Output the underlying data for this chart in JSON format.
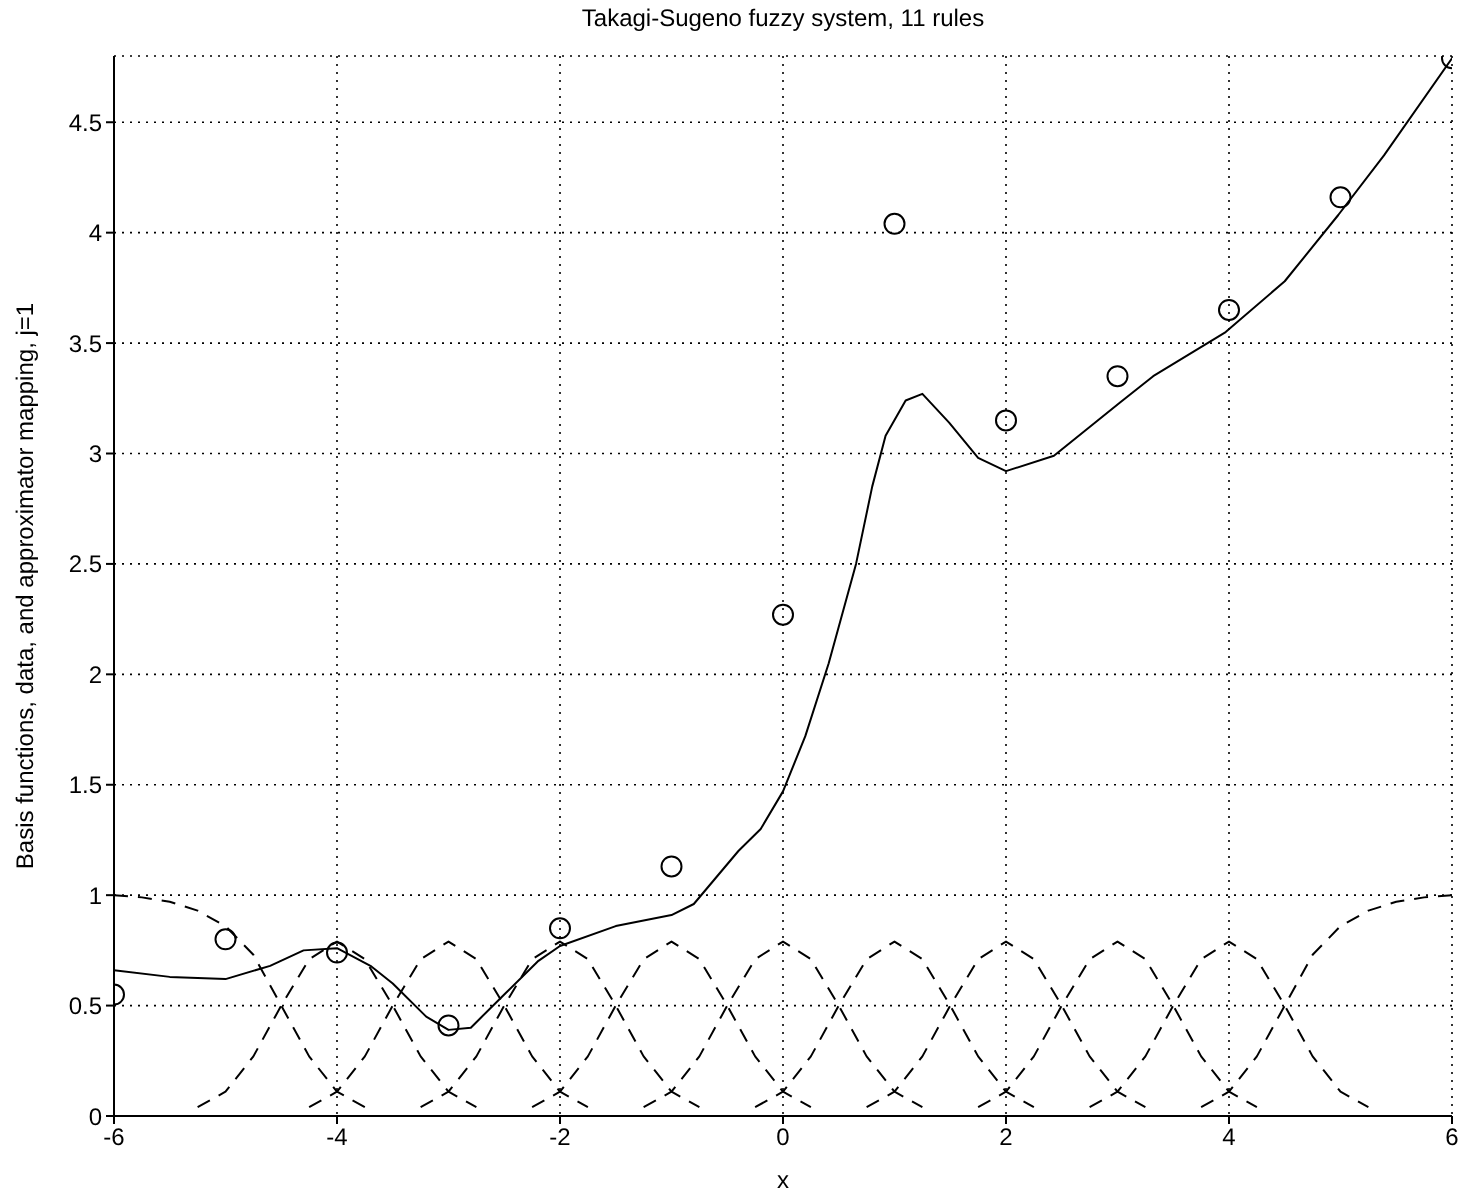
{
  "chart_data": {
    "type": "line",
    "title": "Takagi-Sugeno fuzzy system, 11 rules",
    "xlabel": "x",
    "ylabel": "Basis functions, data, and approximator mapping, j=1",
    "xlim": [
      -6,
      6
    ],
    "ylim": [
      0,
      4.8
    ],
    "xticks": [
      -6,
      -4,
      -2,
      0,
      2,
      4,
      6
    ],
    "yticks": [
      0,
      0.5,
      1,
      1.5,
      2,
      2.5,
      3,
      3.5,
      4,
      4.5
    ],
    "grid": true,
    "series": [
      {
        "type": "scatter",
        "marker": "circle",
        "color": "#000000",
        "x": [
          -6,
          -5,
          -4,
          -3,
          -2,
          -1,
          0,
          1,
          2,
          3,
          4,
          5,
          6
        ],
        "values": [
          0.55,
          0.8,
          0.74,
          0.41,
          0.85,
          1.13,
          2.27,
          4.04,
          3.15,
          3.35,
          3.65,
          4.16,
          4.79
        ]
      },
      {
        "line_style": "solid",
        "color": "#000000",
        "x": [
          -6,
          -5.5,
          -5,
          -4.6,
          -4.3,
          -4,
          -3.7,
          -3.5,
          -3.2,
          -3,
          -2.8,
          -2.5,
          -2.2,
          -2,
          -1.5,
          -1,
          -0.8,
          -0.6,
          -0.4,
          -0.2,
          0,
          0.2,
          0.41,
          0.655,
          0.8,
          0.92,
          1.1,
          1.25,
          1.49,
          1.75,
          2,
          2.43,
          3.02,
          3.32,
          3.97,
          4.5,
          4.98,
          5.39,
          6
        ],
        "values": [
          0.66,
          0.63,
          0.62,
          0.68,
          0.75,
          0.76,
          0.68,
          0.6,
          0.45,
          0.39,
          0.4,
          0.55,
          0.7,
          0.77,
          0.86,
          0.91,
          0.96,
          1.08,
          1.2,
          1.3,
          1.47,
          1.72,
          2.05,
          2.5,
          2.85,
          3.08,
          3.24,
          3.27,
          3.14,
          2.98,
          2.92,
          2.99,
          3.23,
          3.35,
          3.55,
          3.78,
          4.08,
          4.35,
          4.79
        ]
      },
      {
        "line_style": "dashed",
        "color": "#000000",
        "x": [
          -6,
          -5.75,
          -5.5,
          -5.25,
          -5,
          -4.75,
          -4.5,
          -4.25,
          -4,
          -3.75
        ],
        "values": [
          1,
          0.99,
          0.97,
          0.93,
          0.86,
          0.73,
          0.5,
          0.27,
          0.11,
          0.04
        ]
      },
      {
        "line_style": "dashed",
        "color": "#000000",
        "x": [
          -5.25,
          -5,
          -4.75,
          -4.5,
          -4.25,
          -4,
          -3.75,
          -3.5,
          -3.25,
          -3,
          -2.75
        ],
        "values": [
          0.04,
          0.11,
          0.27,
          0.5,
          0.71,
          0.79,
          0.71,
          0.5,
          0.27,
          0.11,
          0.04
        ]
      },
      {
        "line_style": "dashed",
        "color": "#000000",
        "x": [
          -4.25,
          -4,
          -3.75,
          -3.5,
          -3.25,
          -3,
          -2.75,
          -2.5,
          -2.25,
          -2,
          -1.75
        ],
        "values": [
          0.04,
          0.11,
          0.27,
          0.5,
          0.71,
          0.79,
          0.71,
          0.5,
          0.27,
          0.11,
          0.04
        ]
      },
      {
        "line_style": "dashed",
        "color": "#000000",
        "x": [
          -3.25,
          -3,
          -2.75,
          -2.5,
          -2.25,
          -2,
          -1.75,
          -1.5,
          -1.25,
          -1,
          -0.75
        ],
        "values": [
          0.04,
          0.11,
          0.27,
          0.5,
          0.71,
          0.79,
          0.71,
          0.5,
          0.27,
          0.11,
          0.04
        ]
      },
      {
        "line_style": "dashed",
        "color": "#000000",
        "x": [
          -2.25,
          -2,
          -1.75,
          -1.5,
          -1.25,
          -1,
          -0.75,
          -0.5,
          -0.25,
          0,
          0.25
        ],
        "values": [
          0.04,
          0.11,
          0.27,
          0.5,
          0.71,
          0.79,
          0.71,
          0.5,
          0.27,
          0.11,
          0.04
        ]
      },
      {
        "line_style": "dashed",
        "color": "#000000",
        "x": [
          -1.25,
          -1,
          -0.75,
          -0.5,
          -0.25,
          0,
          0.25,
          0.5,
          0.75,
          1,
          1.25
        ],
        "values": [
          0.04,
          0.11,
          0.27,
          0.5,
          0.71,
          0.79,
          0.71,
          0.5,
          0.27,
          0.11,
          0.04
        ]
      },
      {
        "line_style": "dashed",
        "color": "#000000",
        "x": [
          -0.25,
          0,
          0.25,
          0.5,
          0.75,
          1,
          1.25,
          1.5,
          1.75,
          2,
          2.25
        ],
        "values": [
          0.04,
          0.11,
          0.27,
          0.5,
          0.71,
          0.79,
          0.71,
          0.5,
          0.27,
          0.11,
          0.04
        ]
      },
      {
        "line_style": "dashed",
        "color": "#000000",
        "x": [
          0.75,
          1,
          1.25,
          1.5,
          1.75,
          2,
          2.25,
          2.5,
          2.75,
          3,
          3.25
        ],
        "values": [
          0.04,
          0.11,
          0.27,
          0.5,
          0.71,
          0.79,
          0.71,
          0.5,
          0.27,
          0.11,
          0.04
        ]
      },
      {
        "line_style": "dashed",
        "color": "#000000",
        "x": [
          1.75,
          2,
          2.25,
          2.5,
          2.75,
          3,
          3.25,
          3.5,
          3.75,
          4,
          4.25
        ],
        "values": [
          0.04,
          0.11,
          0.27,
          0.5,
          0.71,
          0.79,
          0.71,
          0.5,
          0.27,
          0.11,
          0.04
        ]
      },
      {
        "line_style": "dashed",
        "color": "#000000",
        "x": [
          2.75,
          3,
          3.25,
          3.5,
          3.75,
          4,
          4.25,
          4.5,
          4.75,
          5,
          5.25
        ],
        "values": [
          0.04,
          0.11,
          0.27,
          0.5,
          0.71,
          0.79,
          0.71,
          0.5,
          0.27,
          0.11,
          0.04
        ]
      },
      {
        "line_style": "dashed",
        "color": "#000000",
        "x": [
          3.75,
          4,
          4.25,
          4.5,
          4.75,
          5,
          5.25,
          5.5,
          5.75,
          6
        ],
        "values": [
          0.04,
          0.11,
          0.27,
          0.5,
          0.73,
          0.86,
          0.93,
          0.97,
          0.99,
          1
        ]
      }
    ]
  }
}
